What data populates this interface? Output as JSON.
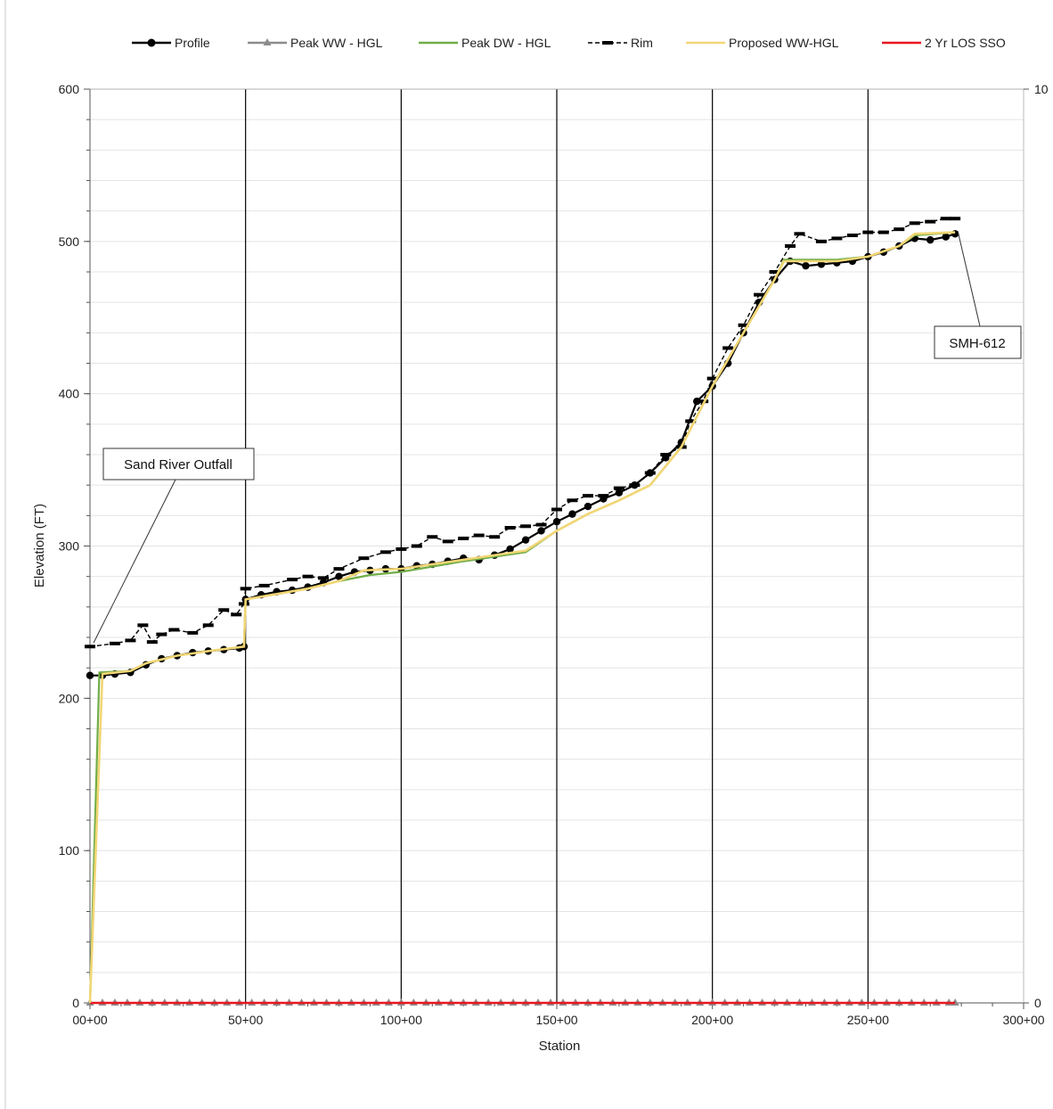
{
  "chart_data": {
    "type": "line",
    "xlabel": "Station",
    "ylabel": "Elevation (FT)",
    "xlim": [
      0,
      30000
    ],
    "ylim": [
      0,
      600
    ],
    "y2lim": [
      0,
      10
    ],
    "x_ticks": [
      0,
      5000,
      10000,
      15000,
      20000,
      25000,
      30000
    ],
    "x_tick_labels": [
      "00+00",
      "50+00",
      "100+00",
      "150+00",
      "200+00",
      "250+00",
      "300+00"
    ],
    "y_ticks": [
      0,
      100,
      200,
      300,
      400,
      500,
      600
    ],
    "y_tick_labels": [
      "0",
      "100",
      "200",
      "300",
      "400",
      "500",
      "600"
    ],
    "y2_ticks": [
      0,
      10
    ],
    "y2_tick_labels": [
      "0",
      "10"
    ],
    "major_vertical_gridlines": [
      5000,
      10000,
      15000,
      20000,
      25000
    ],
    "minor_y_step": 20,
    "legend_position": "top",
    "series": [
      {
        "name": "Profile",
        "color": "#000000",
        "style": "solid-circle-markers",
        "x": [
          0,
          400,
          800,
          1300,
          1800,
          2300,
          2800,
          3300,
          3800,
          4300,
          4800,
          4950,
          5000,
          5500,
          6000,
          6500,
          7000,
          7500,
          8000,
          8500,
          9000,
          9500,
          10000,
          10500,
          11000,
          11500,
          12000,
          12500,
          13000,
          13500,
          14000,
          14500,
          15000,
          15500,
          16000,
          16500,
          17000,
          17500,
          18000,
          18500,
          19000,
          19500,
          20000,
          20500,
          21000,
          21500,
          22000,
          22500,
          23000,
          23500,
          24000,
          24500,
          25000,
          25500,
          26000,
          26500,
          27000,
          27500,
          27800
        ],
        "y": [
          215,
          215,
          216,
          217,
          222,
          226,
          228,
          230,
          231,
          232,
          233,
          234,
          265,
          268,
          270,
          271,
          273,
          276,
          280,
          283,
          284,
          285,
          285,
          287,
          288,
          290,
          292,
          291,
          294,
          298,
          304,
          310,
          316,
          321,
          326,
          331,
          335,
          340,
          348,
          358,
          368,
          395,
          405,
          420,
          440,
          460,
          475,
          487,
          484,
          485,
          486,
          487,
          490,
          493,
          497,
          502,
          501,
          503,
          505
        ]
      },
      {
        "name": "Peak WW - HGL",
        "color": "#8c8c8c",
        "style": "solid-triangle-markers",
        "x": [
          0,
          400,
          800,
          1200,
          1600,
          2000,
          2400,
          2800,
          3200,
          3600,
          4000,
          4400,
          4800,
          5200,
          5600,
          6000,
          6400,
          6800,
          7200,
          7600,
          8000,
          8400,
          8800,
          9200,
          9600,
          10000,
          10400,
          10800,
          11200,
          11600,
          12000,
          12400,
          12800,
          13200,
          13600,
          14000,
          14400,
          14800,
          15200,
          15600,
          16000,
          16400,
          16800,
          17200,
          17600,
          18000,
          18400,
          18800,
          19200,
          19600,
          20000,
          20400,
          20800,
          21200,
          21600,
          22000,
          22400,
          22800,
          23200,
          23600,
          24000,
          24400,
          24800,
          25200,
          25600,
          26000,
          26400,
          26800,
          27200,
          27600,
          27800
        ],
        "y": [
          0,
          0,
          0,
          0,
          0,
          0,
          0,
          0,
          0,
          0,
          0,
          0,
          0,
          0,
          0,
          0,
          0,
          0,
          0,
          0,
          0,
          0,
          0,
          0,
          0,
          0,
          0,
          0,
          0,
          0,
          0,
          0,
          0,
          0,
          0,
          0,
          0,
          0,
          0,
          0,
          0,
          0,
          0,
          0,
          0,
          0,
          0,
          0,
          0,
          0,
          0,
          0,
          0,
          0,
          0,
          0,
          0,
          0,
          0,
          0,
          0,
          0,
          0,
          0,
          0,
          0,
          0,
          0,
          0,
          0,
          0
        ]
      },
      {
        "name": "Peak DW - HGL",
        "color": "#70ad47",
        "style": "solid",
        "x": [
          0,
          300,
          1300,
          1800,
          2800,
          3800,
          4950,
          5000,
          7000,
          8000,
          9000,
          10000,
          12000,
          14000,
          15000,
          16000,
          17000,
          18000,
          19000,
          20000,
          21000,
          22000,
          22300,
          23000,
          24000,
          25000,
          26000,
          26500,
          27800
        ],
        "y": [
          0,
          217,
          218,
          223,
          228,
          231,
          234,
          265,
          272,
          277,
          281,
          283,
          290,
          296,
          310,
          321,
          330,
          340,
          365,
          405,
          440,
          475,
          488,
          488,
          488,
          490,
          497,
          504,
          506
        ]
      },
      {
        "name": "Rim",
        "color": "#000000",
        "style": "dashed-dash-markers",
        "x": [
          0,
          800,
          1300,
          1700,
          2000,
          2300,
          2700,
          3300,
          3800,
          4300,
          4700,
          4950,
          5000,
          5600,
          6500,
          7000,
          7500,
          8000,
          8800,
          9500,
          10000,
          10500,
          11000,
          11500,
          12000,
          12500,
          13000,
          13500,
          14000,
          14500,
          15000,
          15500,
          16000,
          16500,
          17000,
          17500,
          18000,
          18500,
          19000,
          19300,
          19700,
          20000,
          20500,
          21000,
          21500,
          22000,
          22500,
          22800,
          23500,
          24000,
          24500,
          25000,
          25500,
          26000,
          26500,
          27000,
          27500,
          27800
        ],
        "y": [
          234,
          236,
          238,
          248,
          237,
          242,
          245,
          243,
          248,
          258,
          255,
          262,
          272,
          274,
          278,
          280,
          279,
          285,
          292,
          296,
          298,
          300,
          306,
          303,
          305,
          307,
          306,
          312,
          313,
          314,
          324,
          330,
          333,
          333,
          338,
          340,
          348,
          360,
          365,
          382,
          395,
          410,
          430,
          445,
          465,
          480,
          497,
          505,
          500,
          502,
          504,
          506,
          506,
          508,
          512,
          513,
          515,
          515
        ]
      },
      {
        "name": "Proposed WW-HGL",
        "color": "#f2d675",
        "style": "solid",
        "x": [
          0,
          400,
          1300,
          1800,
          2800,
          3800,
          4950,
          5000,
          7000,
          8000,
          8800,
          10000,
          12000,
          14000,
          15000,
          16000,
          17000,
          18000,
          19000,
          20000,
          21000,
          22000,
          22300,
          23000,
          24000,
          25000,
          26000,
          26500,
          27800
        ],
        "y": [
          0,
          216,
          218,
          223,
          228,
          231,
          234,
          265,
          272,
          277,
          284,
          285,
          291,
          297,
          310,
          321,
          330,
          340,
          365,
          405,
          440,
          475,
          487,
          487,
          487,
          490,
          497,
          505,
          506
        ]
      },
      {
        "name": "2 Yr LOS SSO",
        "color": "#e8161f",
        "style": "solid",
        "x": [
          0,
          27800
        ],
        "y": [
          0,
          0
        ]
      }
    ],
    "annotations": [
      {
        "text": "Sand River Outfall",
        "x": 0,
        "y": 234
      },
      {
        "text": "SMH-612",
        "x": 27800,
        "y": 515
      }
    ]
  }
}
